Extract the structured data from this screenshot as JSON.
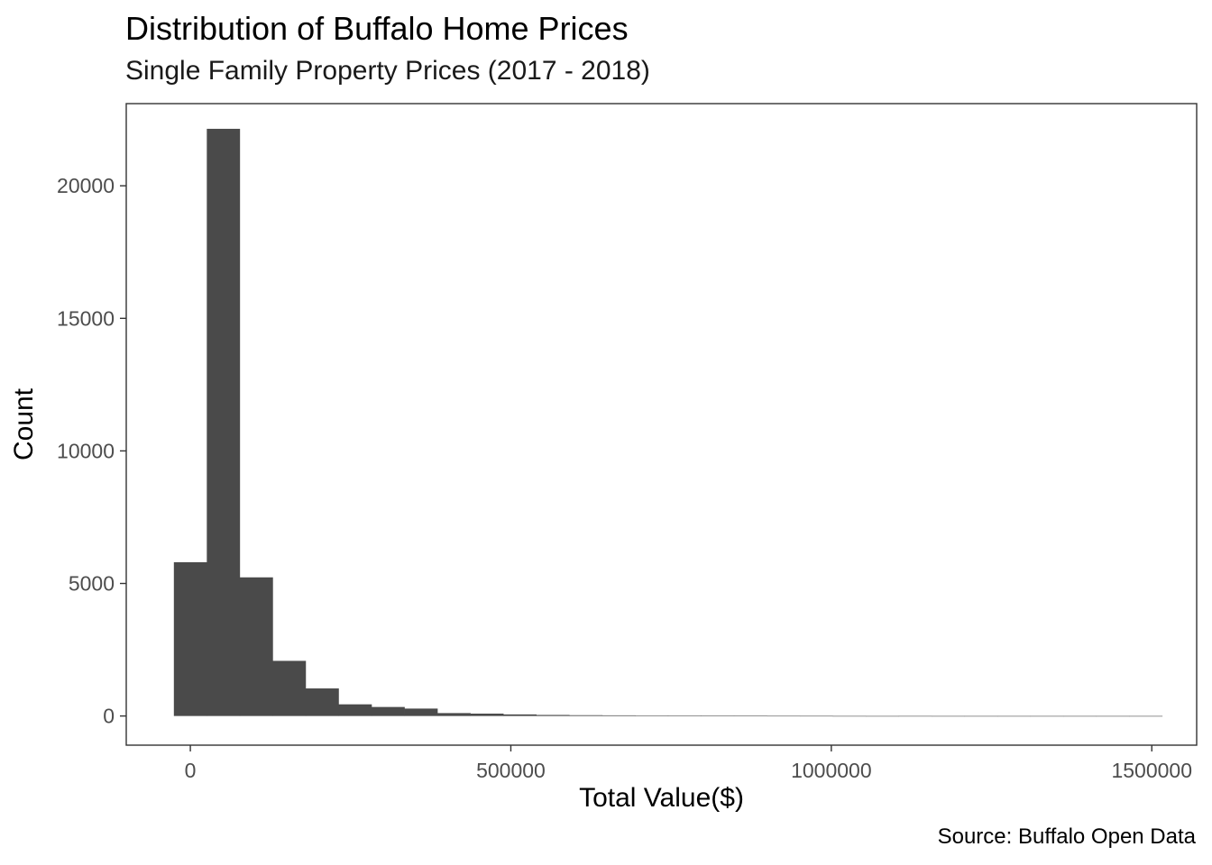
{
  "chart_data": {
    "type": "bar",
    "title": "Distribution of Buffalo Home Prices",
    "subtitle": "Single Family Property Prices (2017 - 2018)",
    "caption": "Source: Buffalo Open Data",
    "xlabel": "Total Value($)",
    "ylabel": "Count",
    "xlim": [
      -100000,
      1570000
    ],
    "ylim": [
      -1100,
      23100
    ],
    "x_ticks": [
      0,
      500000,
      1000000,
      1500000
    ],
    "x_tick_labels": [
      "0",
      "500000",
      "1000000",
      "1500000"
    ],
    "y_ticks": [
      0,
      5000,
      10000,
      15000,
      20000
    ],
    "y_tick_labels": [
      "0",
      "5000",
      "10000",
      "15000",
      "20000"
    ],
    "bin_width": 51400,
    "bins": [
      {
        "x0": -25700,
        "x1": 25700,
        "count": 5800
      },
      {
        "x0": 25700,
        "x1": 77100,
        "count": 22150
      },
      {
        "x0": 77100,
        "x1": 128500,
        "count": 5230
      },
      {
        "x0": 128500,
        "x1": 179900,
        "count": 2080
      },
      {
        "x0": 179900,
        "x1": 231300,
        "count": 1040
      },
      {
        "x0": 231300,
        "x1": 282700,
        "count": 440
      },
      {
        "x0": 282700,
        "x1": 334100,
        "count": 340
      },
      {
        "x0": 334100,
        "x1": 385500,
        "count": 280
      },
      {
        "x0": 385500,
        "x1": 436900,
        "count": 110
      },
      {
        "x0": 436900,
        "x1": 488300,
        "count": 90
      },
      {
        "x0": 488300,
        "x1": 539700,
        "count": 60
      },
      {
        "x0": 539700,
        "x1": 591100,
        "count": 40
      },
      {
        "x0": 591100,
        "x1": 642500,
        "count": 30
      },
      {
        "x0": 642500,
        "x1": 693900,
        "count": 25
      },
      {
        "x0": 693900,
        "x1": 745300,
        "count": 15
      },
      {
        "x0": 745300,
        "x1": 796700,
        "count": 15
      },
      {
        "x0": 796700,
        "x1": 848100,
        "count": 10
      },
      {
        "x0": 848100,
        "x1": 899500,
        "count": 8
      },
      {
        "x0": 899500,
        "x1": 950900,
        "count": 6
      },
      {
        "x0": 950900,
        "x1": 1002300,
        "count": 5
      },
      {
        "x0": 1002300,
        "x1": 1053700,
        "count": 2
      },
      {
        "x0": 1053700,
        "x1": 1105100,
        "count": 1
      },
      {
        "x0": 1105100,
        "x1": 1156500,
        "count": 2
      },
      {
        "x0": 1156500,
        "x1": 1207900,
        "count": 1
      },
      {
        "x0": 1207900,
        "x1": 1259300,
        "count": 1
      },
      {
        "x0": 1259300,
        "x1": 1310700,
        "count": 1
      },
      {
        "x0": 1310700,
        "x1": 1362100,
        "count": 1
      },
      {
        "x0": 1362100,
        "x1": 1413500,
        "count": 1
      },
      {
        "x0": 1413500,
        "x1": 1464900,
        "count": 1
      },
      {
        "x0": 1464900,
        "x1": 1516300,
        "count": 1
      }
    ],
    "bar_color": "#4a4a4a",
    "grid": false,
    "legend": "none",
    "theme": "bw"
  }
}
